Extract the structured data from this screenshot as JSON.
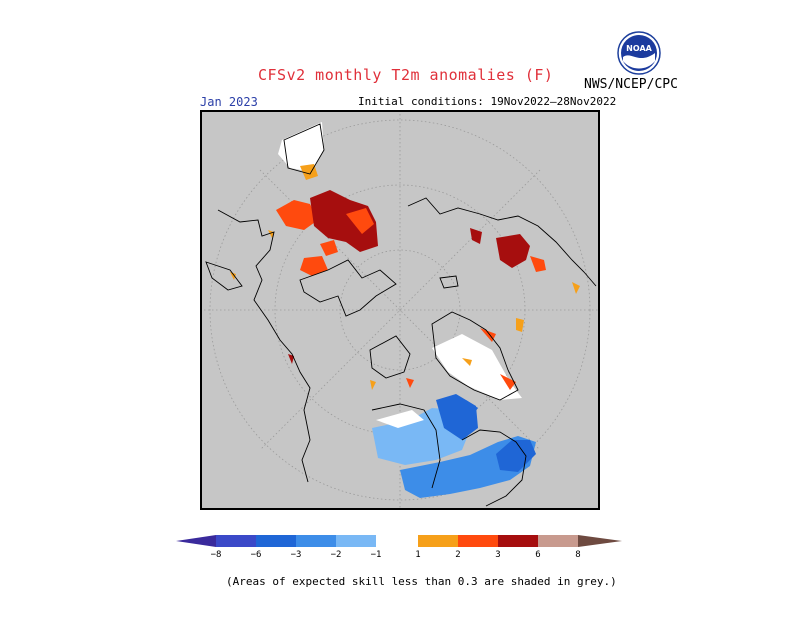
{
  "header": {
    "title": "CFSv2 monthly T2m anomalies (F)",
    "agency": "NWS/NCEP/CPC",
    "logo_text": "NOAA",
    "valid_month": "Jan 2023",
    "initial_conditions": "Initial conditions: 19Nov2022–28Nov2022"
  },
  "map": {
    "projection": "north-polar-stereographic",
    "background_color": "#c6c6c6"
  },
  "colorbar": {
    "ticks": [
      "−8",
      "−6",
      "−3",
      "−2",
      "−1",
      "1",
      "2",
      "3",
      "6",
      "8"
    ],
    "colors": {
      "below_-8": "#3a2a9c",
      "-8_to_-6": "#3b49c8",
      "-6_to_-3": "#1f66d6",
      "-3_to_-2": "#3d8de8",
      "-2_to_-1": "#79b8f5",
      "-1_to_1": "#ffffff",
      "1_to_2": "#f6a01a",
      "2_to_3": "#ff4a0e",
      "3_to_6": "#a60e0e",
      "6_to_8": "#c89a8e",
      "above_8": "#6e4a40"
    }
  },
  "footer": {
    "note": "(Areas of expected skill less than 0.3 are shaded in grey.)"
  }
}
